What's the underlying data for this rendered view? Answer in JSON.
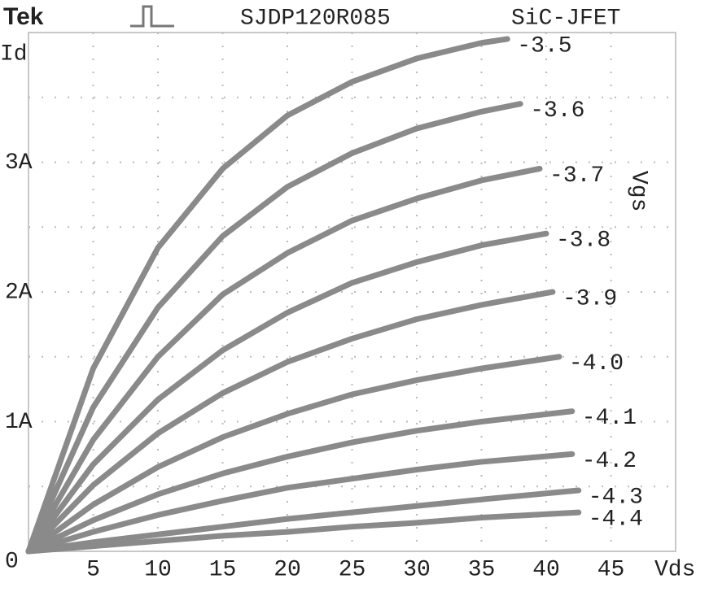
{
  "chart_data": {
    "type": "line",
    "header": {
      "brand": "Tek",
      "device": "SJDP120R085",
      "technology": "SiC-JFET"
    },
    "x_label": "Vds",
    "y_label": "Id",
    "series_label": "Vgs",
    "xlim": [
      0,
      50
    ],
    "xticks": [
      5,
      10,
      15,
      20,
      25,
      30,
      35,
      40,
      45
    ],
    "ylim": [
      0,
      4
    ],
    "yticks": [
      0,
      {
        "value": 1,
        "label": "1A"
      },
      {
        "value": 2,
        "label": "2A"
      },
      {
        "value": 3,
        "label": "3A"
      }
    ],
    "ygrid": [
      0.5,
      1,
      1.5,
      2,
      2.5,
      3,
      3.5
    ],
    "grid": true,
    "series": [
      {
        "name": "-3.5",
        "color": "#8a8a8a",
        "x": [
          0,
          5,
          10,
          15,
          20,
          25,
          30,
          35,
          37
        ],
        "values": [
          0,
          1.41,
          2.34,
          2.95,
          3.36,
          3.62,
          3.8,
          3.92,
          3.95
        ]
      },
      {
        "name": "-3.6",
        "color": "#8a8a8a",
        "x": [
          0,
          5,
          10,
          15,
          20,
          25,
          30,
          35,
          38
        ],
        "values": [
          0,
          1.11,
          1.88,
          2.43,
          2.81,
          3.07,
          3.26,
          3.39,
          3.45
        ]
      },
      {
        "name": "-3.7",
        "color": "#8a8a8a",
        "x": [
          0,
          5,
          10,
          15,
          20,
          25,
          30,
          35,
          39.5
        ],
        "values": [
          0,
          0.86,
          1.5,
          1.98,
          2.3,
          2.55,
          2.72,
          2.86,
          2.95
        ]
      },
      {
        "name": "-3.8",
        "color": "#8a8a8a",
        "x": [
          0,
          5,
          10,
          15,
          20,
          25,
          30,
          35,
          40
        ],
        "values": [
          0,
          0.67,
          1.17,
          1.55,
          1.84,
          2.07,
          2.23,
          2.36,
          2.45
        ]
      },
      {
        "name": "-3.9",
        "color": "#8a8a8a",
        "x": [
          0,
          5,
          10,
          15,
          20,
          25,
          30,
          35,
          40.5
        ],
        "values": [
          0,
          0.51,
          0.91,
          1.22,
          1.46,
          1.64,
          1.79,
          1.9,
          2.0
        ]
      },
      {
        "name": "-4.0",
        "color": "#8a8a8a",
        "x": [
          0,
          5,
          10,
          15,
          20,
          25,
          30,
          35,
          41
        ],
        "values": [
          0,
          0.36,
          0.65,
          0.88,
          1.06,
          1.21,
          1.32,
          1.41,
          1.5
        ]
      },
      {
        "name": "-4.1",
        "color": "#8a8a8a",
        "x": [
          0,
          5,
          10,
          15,
          20,
          25,
          30,
          35,
          42
        ],
        "values": [
          0,
          0.24,
          0.44,
          0.6,
          0.73,
          0.84,
          0.93,
          1.0,
          1.08
        ]
      },
      {
        "name": "-4.2",
        "color": "#8a8a8a",
        "x": [
          0,
          5,
          10,
          15,
          20,
          25,
          30,
          35,
          42
        ],
        "values": [
          0,
          0.15,
          0.28,
          0.39,
          0.49,
          0.56,
          0.63,
          0.69,
          0.75
        ]
      },
      {
        "name": "-4.3",
        "color": "#8a8a8a",
        "x": [
          0,
          5,
          10,
          15,
          20,
          25,
          30,
          35,
          42.5
        ],
        "values": [
          0,
          0.07,
          0.13,
          0.19,
          0.25,
          0.3,
          0.35,
          0.4,
          0.47
        ]
      },
      {
        "name": "-4.4",
        "color": "#8a8a8a",
        "x": [
          0,
          5,
          10,
          15,
          20,
          25,
          30,
          35,
          42.5
        ],
        "values": [
          0,
          0.04,
          0.08,
          0.12,
          0.15,
          0.19,
          0.22,
          0.26,
          0.3
        ]
      }
    ]
  }
}
